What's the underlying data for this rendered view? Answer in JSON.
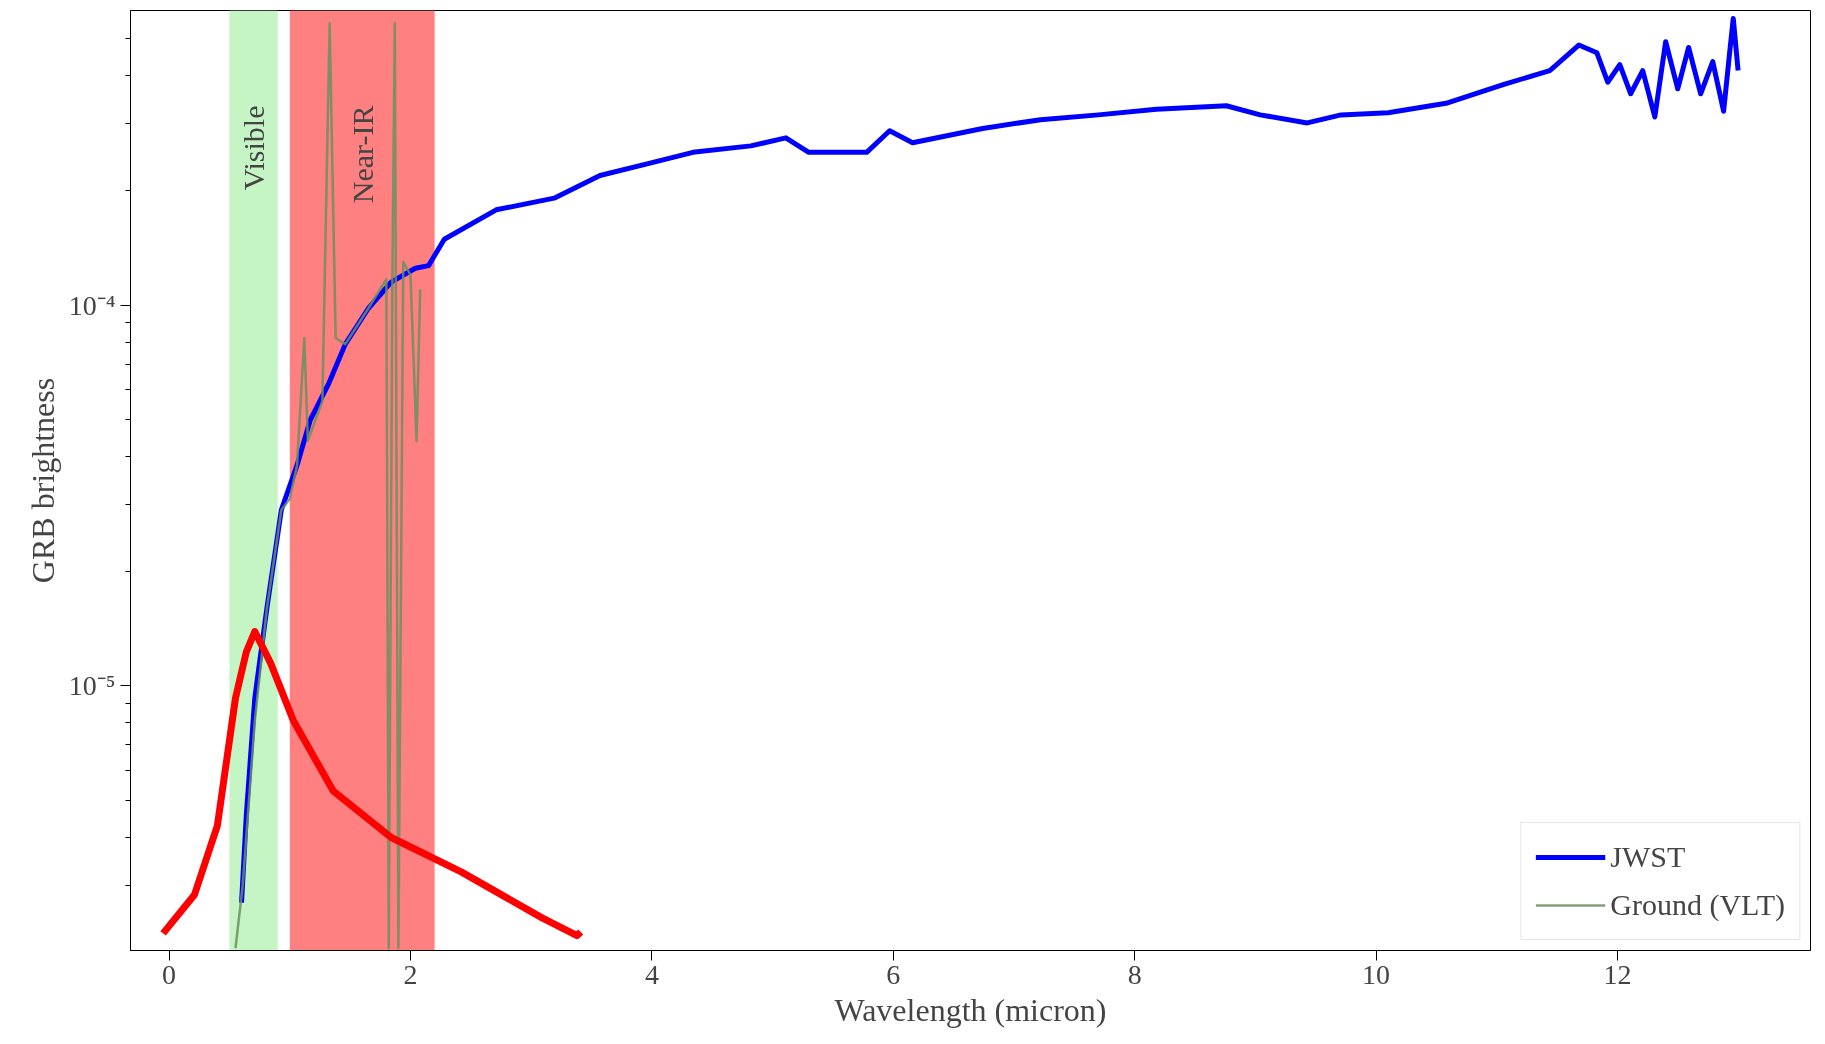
{
  "chart_data": {
    "type": "line",
    "xlabel": "Wavelength (micron)",
    "ylabel": "GRB brightness",
    "log": "y",
    "xlim": [
      -0.32,
      13.6
    ],
    "ylim": [
      2.02e-06,
      0.000594
    ],
    "xticks": [
      0,
      2,
      4,
      6,
      8,
      10,
      12
    ],
    "yticks": [
      {
        "value": 3e-06,
        "label": null
      },
      {
        "value": 4e-06,
        "label": null
      },
      {
        "value": 5e-06,
        "label": null
      },
      {
        "value": 6e-06,
        "label": null
      },
      {
        "value": 7e-06,
        "label": null
      },
      {
        "value": 8e-06,
        "label": null
      },
      {
        "value": 9e-06,
        "label": null
      },
      {
        "value": 1e-05,
        "label": "10⁻⁵"
      },
      {
        "value": 2e-05,
        "label": null
      },
      {
        "value": 3e-05,
        "label": null
      },
      {
        "value": 4e-05,
        "label": null
      },
      {
        "value": 5e-05,
        "label": null
      },
      {
        "value": 6e-05,
        "label": null
      },
      {
        "value": 7e-05,
        "label": null
      },
      {
        "value": 8e-05,
        "label": null
      },
      {
        "value": 9e-05,
        "label": null
      },
      {
        "value": 0.0001,
        "label": "10⁻⁴"
      },
      {
        "value": 0.0002,
        "label": null
      },
      {
        "value": 0.0003,
        "label": null
      },
      {
        "value": 0.0004,
        "label": null
      },
      {
        "value": 0.0005,
        "label": null
      }
    ],
    "grid": false,
    "legend": "bottom right",
    "bands": [
      {
        "axis": "x",
        "from": 0.5,
        "to": 0.9,
        "label": "Visible",
        "color": "#c5f5c5"
      },
      {
        "axis": "x",
        "from": 1.0,
        "to": 2.2,
        "label": "Near-IR",
        "color": "#ff8080"
      }
    ],
    "series": [
      {
        "name": "JWST",
        "color": "#0000ff",
        "x": [
          0.6,
          0.64,
          0.71,
          0.81,
          0.93,
          1.06,
          1.17,
          1.32,
          1.46,
          1.65,
          1.84,
          2.04,
          2.15,
          2.28,
          2.71,
          3.19,
          3.57,
          3.96,
          4.34,
          4.82,
          5.11,
          5.3,
          5.78,
          5.97,
          6.16,
          6.74,
          7.22,
          7.7,
          8.18,
          8.76,
          9.04,
          9.43,
          9.71,
          10.1,
          10.58,
          11.06,
          11.44,
          11.68,
          11.83,
          11.92,
          12.02,
          12.11,
          12.21,
          12.31,
          12.4,
          12.5,
          12.59,
          12.69,
          12.79,
          12.88,
          12.93,
          12.96,
          13.0
        ],
        "values": [
          2.7e-06,
          4.6e-06,
          9.3e-06,
          1.6e-05,
          2.9e-05,
          3.8e-05,
          5e-05,
          6.2e-05,
          7.9e-05,
          9.8e-05,
          0.000115,
          0.000125,
          0.000127,
          0.000149,
          0.000178,
          0.000191,
          0.000219,
          0.000235,
          0.000252,
          0.000262,
          0.000275,
          0.000252,
          0.000252,
          0.000287,
          0.000267,
          0.000291,
          0.000307,
          0.000316,
          0.000327,
          0.000334,
          0.000316,
          0.000301,
          0.000316,
          0.00032,
          0.000339,
          0.00038,
          0.000413,
          0.000482,
          0.00046,
          0.000385,
          0.000428,
          0.000359,
          0.000413,
          0.000312,
          0.000492,
          0.00037,
          0.000475,
          0.000359,
          0.000436,
          0.000323,
          0.00046,
          0.000566,
          0.000413
        ]
      },
      {
        "name": "Ground (VLT)",
        "color": "#6b8f5e",
        "x": [
          0.55,
          0.61,
          0.71,
          0.81,
          0.93,
          1.0,
          1.06,
          1.12,
          1.15,
          1.27,
          1.33,
          1.38,
          1.46,
          1.65,
          1.8,
          1.82,
          1.85,
          1.87,
          1.9,
          1.94,
          2.0,
          2.05,
          2.08
        ],
        "values": [
          2.05e-06,
          3e-06,
          8.1e-06,
          1.6e-05,
          2.9e-05,
          3.1e-05,
          3.8e-05,
          8.2e-05,
          4.4e-05,
          5.6e-05,
          0.00055,
          8.2e-05,
          7.9e-05,
          9.8e-05,
          0.000117,
          2.05e-06,
          0.00012,
          0.00055,
          2.05e-06,
          0.00013,
          0.00012,
          4.4e-05,
          0.00011
        ]
      },
      {
        "color": "#ff0000",
        "x": [
          -0.05,
          0.21,
          0.4,
          0.55,
          0.64,
          0.71,
          0.84,
          1.03,
          1.36,
          1.84,
          2.42,
          3.09,
          3.38,
          3.41
        ],
        "values": [
          2.24e-06,
          2.83e-06,
          4.3e-06,
          9.3e-06,
          1.23e-05,
          1.39e-05,
          1.15e-05,
          8.1e-06,
          5.3e-06,
          4e-06,
          3.25e-06,
          2.46e-06,
          2.21e-06,
          2.26e-06
        ]
      }
    ]
  }
}
